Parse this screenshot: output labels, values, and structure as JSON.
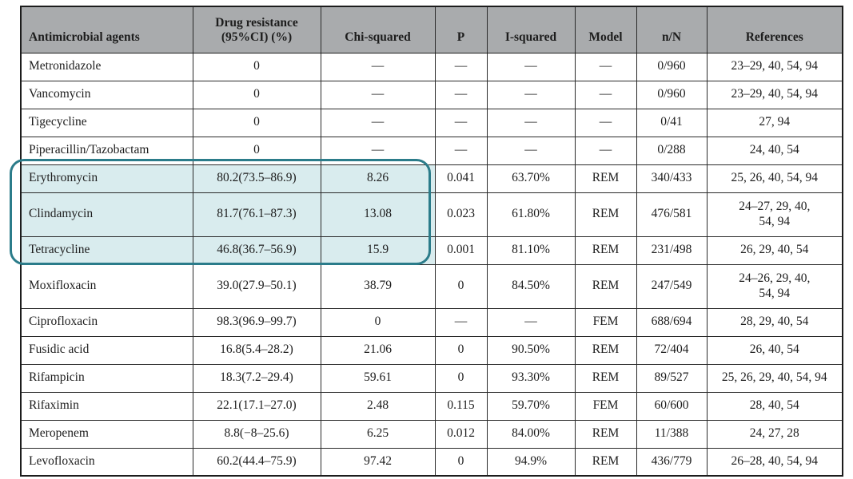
{
  "table": {
    "columns": [
      {
        "key": "agent",
        "label": "Antimicrobial agents",
        "align": "left"
      },
      {
        "key": "resistance",
        "label": "Drug resistance\n(95%CI) (%)",
        "align": "center"
      },
      {
        "key": "chi-squared",
        "label": "Chi-squared",
        "align": "center"
      },
      {
        "key": "p",
        "label": "P",
        "align": "center"
      },
      {
        "key": "i-squared",
        "label": "I-squared",
        "align": "center"
      },
      {
        "key": "model",
        "label": "Model",
        "align": "center"
      },
      {
        "key": "n-over-N",
        "label": "n/N",
        "align": "center"
      },
      {
        "key": "references",
        "label": "References",
        "align": "center"
      }
    ],
    "rows": [
      {
        "cells": [
          "Metronidazole",
          "0",
          "—",
          "—",
          "—",
          "—",
          "0/960",
          "23–29, 40, 54, 94"
        ],
        "highlight": false,
        "tall": false
      },
      {
        "cells": [
          "Vancomycin",
          "0",
          "—",
          "—",
          "—",
          "—",
          "0/960",
          "23–29, 40, 54, 94"
        ],
        "highlight": false,
        "tall": false
      },
      {
        "cells": [
          "Tigecycline",
          "0",
          "—",
          "—",
          "—",
          "—",
          "0/41",
          "27, 94"
        ],
        "highlight": false,
        "tall": false
      },
      {
        "cells": [
          "Piperacillin/Tazobactam",
          "0",
          "—",
          "—",
          "—",
          "—",
          "0/288",
          "24, 40, 54"
        ],
        "highlight": false,
        "tall": false
      },
      {
        "cells": [
          "Erythromycin",
          "80.2(73.5–86.9)",
          "8.26",
          "0.041",
          "63.70%",
          "REM",
          "340/433",
          "25, 26, 40, 54, 94"
        ],
        "highlight": true,
        "tall": false
      },
      {
        "cells": [
          "Clindamycin",
          "81.7(76.1–87.3)",
          "13.08",
          "0.023",
          "61.80%",
          "REM",
          "476/581",
          "24–27, 29, 40,\n54, 94"
        ],
        "highlight": true,
        "tall": true
      },
      {
        "cells": [
          "Tetracycline",
          "46.8(36.7–56.9)",
          "15.9",
          "0.001",
          "81.10%",
          "REM",
          "231/498",
          "26, 29, 40, 54"
        ],
        "highlight": true,
        "tall": false
      },
      {
        "cells": [
          "Moxifloxacin",
          "39.0(27.9–50.1)",
          "38.79",
          "0",
          "84.50%",
          "REM",
          "247/549",
          "24–26, 29, 40,\n54, 94"
        ],
        "highlight": false,
        "tall": true
      },
      {
        "cells": [
          "Ciprofloxacin",
          "98.3(96.9–99.7)",
          "0",
          "—",
          "—",
          "FEM",
          "688/694",
          "28, 29, 40, 54"
        ],
        "highlight": false,
        "tall": false
      },
      {
        "cells": [
          "Fusidic acid",
          "16.8(5.4–28.2)",
          "21.06",
          "0",
          "90.50%",
          "REM",
          "72/404",
          "26, 40, 54"
        ],
        "highlight": false,
        "tall": false
      },
      {
        "cells": [
          "Rifampicin",
          "18.3(7.2–29.4)",
          "59.61",
          "0",
          "93.30%",
          "REM",
          "89/527",
          "25, 26, 29, 40, 54, 94"
        ],
        "highlight": false,
        "tall": false
      },
      {
        "cells": [
          "Rifaximin",
          "22.1(17.1–27.0)",
          "2.48",
          "0.115",
          "59.70%",
          "FEM",
          "60/600",
          "28, 40, 54"
        ],
        "highlight": false,
        "tall": false
      },
      {
        "cells": [
          "Meropenem",
          "8.8(−8–25.6)",
          "6.25",
          "0.012",
          "84.00%",
          "REM",
          "11/388",
          "24, 27, 28"
        ],
        "highlight": false,
        "tall": false
      },
      {
        "cells": [
          "Levofloxacin",
          "60.2(44.4–75.9)",
          "97.42",
          "0",
          "94.9%",
          "REM",
          "436/779",
          "26–28, 40, 54, 94"
        ],
        "highlight": false,
        "tall": false
      }
    ]
  },
  "highlight": {
    "highlighted_agents": [
      "Erythromycin",
      "Clindamycin",
      "Tetracycline"
    ],
    "span_columns": 3,
    "border_color": "#2b7c8a",
    "fill_color": "#d9ecee"
  },
  "colors": {
    "header_background": "#a9abad",
    "grid_line": "#2a2a2a",
    "text": "#1d1d1d"
  }
}
